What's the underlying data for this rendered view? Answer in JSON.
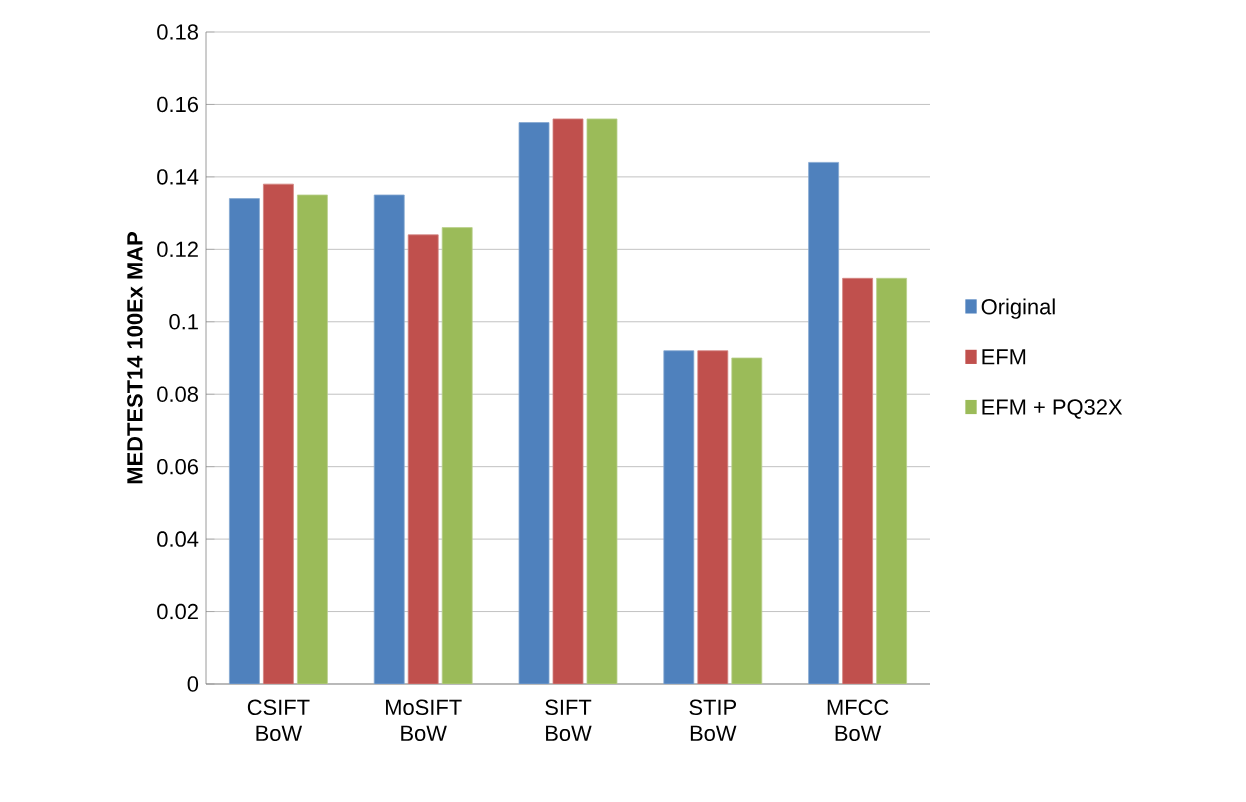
{
  "chart_data": {
    "type": "bar",
    "ylabel": "MEDTEST14  100Ex MAP",
    "categories": [
      "CSIFT BoW",
      "MoSIFT BoW",
      "SIFT BoW",
      "STIP BoW",
      "MFCC BoW"
    ],
    "series": [
      {
        "name": "Original",
        "color": "#4f81bd",
        "values": [
          0.134,
          0.135,
          0.155,
          0.092,
          0.144
        ]
      },
      {
        "name": "EFM",
        "color": "#c0504d",
        "values": [
          0.138,
          0.124,
          0.156,
          0.092,
          0.112
        ]
      },
      {
        "name": "EFM + PQ32X",
        "color": "#9bbb59",
        "values": [
          0.135,
          0.126,
          0.156,
          0.09,
          0.112
        ]
      }
    ],
    "ylim": [
      0,
      0.18
    ],
    "yticks": [
      0,
      0.02,
      0.04,
      0.06,
      0.08,
      {
        "value": 0.1,
        "label": "0.1"
      },
      0.12,
      0.14,
      0.16,
      0.18
    ],
    "grid": "y",
    "legend": "right"
  }
}
